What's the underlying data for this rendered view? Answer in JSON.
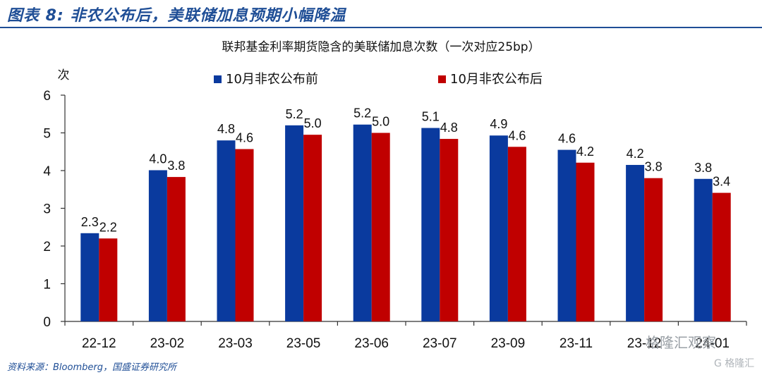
{
  "header": {
    "figure_title": "图表 8:  非农公布后，美联储加息预期小幅降温"
  },
  "source": "资料来源：Bloomberg，国盛证券研究所",
  "watermark": {
    "main": "格隆汇观察",
    "logo": "G 格隆汇"
  },
  "chart_data": {
    "type": "bar",
    "title": "联邦基金利率期货隐含的美联储加息次数（一次对应25bp）",
    "ylabel": "次",
    "xlabel": "",
    "ylim": [
      0,
      6
    ],
    "yticks": [
      0,
      1,
      2,
      3,
      4,
      5,
      6
    ],
    "grid": false,
    "legend_position": "top",
    "categories": [
      "22-12",
      "23-02",
      "23-03",
      "23-05",
      "23-06",
      "23-07",
      "23-09",
      "23-11",
      "23-12",
      "24-01"
    ],
    "series": [
      {
        "name": "10月非农公布前",
        "color": "#0a3a9e",
        "values": [
          2.34,
          4.01,
          4.8,
          5.2,
          5.22,
          5.13,
          4.93,
          4.55,
          4.15,
          3.78
        ],
        "labels": [
          "2.3",
          "4.0",
          "4.8",
          "5.2",
          "5.2",
          "5.1",
          "4.9",
          "4.6",
          "4.2",
          "3.8"
        ]
      },
      {
        "name": "10月非农公布后",
        "color": "#c00000",
        "values": [
          2.2,
          3.83,
          4.57,
          4.95,
          5.0,
          4.84,
          4.63,
          4.21,
          3.8,
          3.41
        ],
        "labels": [
          "2.2",
          "3.8",
          "4.6",
          "5.0",
          "5.0",
          "4.8",
          "4.6",
          "4.2",
          "3.8",
          "3.4"
        ]
      }
    ]
  }
}
